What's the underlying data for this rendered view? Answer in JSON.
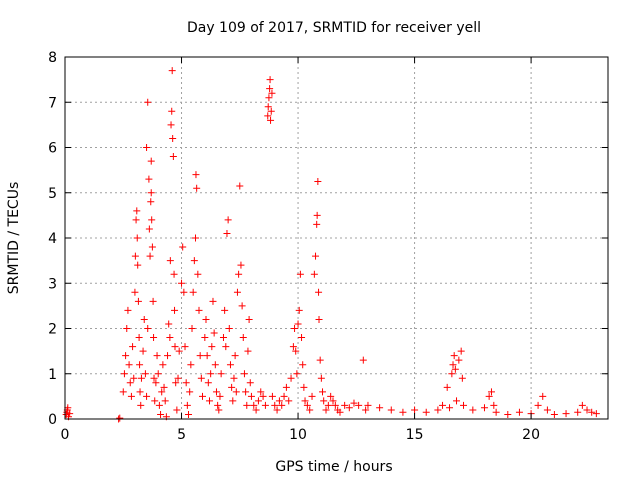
{
  "chart_data": {
    "type": "scatter",
    "title": "Day 109 of 2017, SRMTID for receiver yell",
    "xlabel": "GPS time / hours",
    "ylabel": "SRMTID / TECUs",
    "xlim": [
      0,
      23.3
    ],
    "ylim": [
      0,
      8
    ],
    "x_ticks": [
      0,
      5,
      10,
      15,
      20
    ],
    "y_ticks": [
      0,
      1,
      2,
      3,
      4,
      5,
      6,
      7,
      8
    ],
    "x_tick_labels": [
      "0",
      "5",
      "10",
      "15",
      "20"
    ],
    "y_tick_labels": [
      "0",
      "1",
      "2",
      "3",
      "4",
      "5",
      "6",
      "7",
      "8"
    ],
    "grid": true,
    "marker": "+",
    "series": [
      {
        "name": "SRMTID",
        "color": "#ff0000",
        "points": [
          [
            0.05,
            0.1
          ],
          [
            0.08,
            0.15
          ],
          [
            0.1,
            0.2
          ],
          [
            0.12,
            0.25
          ],
          [
            0.15,
            0.05
          ],
          [
            0.2,
            0.12
          ],
          [
            2.3,
            0.0
          ],
          [
            2.35,
            0.02
          ],
          [
            2.5,
            0.6
          ],
          [
            2.55,
            1.0
          ],
          [
            2.6,
            1.4
          ],
          [
            2.65,
            2.0
          ],
          [
            2.7,
            2.4
          ],
          [
            2.75,
            1.2
          ],
          [
            2.8,
            0.8
          ],
          [
            2.85,
            0.5
          ],
          [
            2.9,
            1.6
          ],
          [
            2.95,
            0.9
          ],
          [
            3.0,
            2.8
          ],
          [
            3.02,
            3.6
          ],
          [
            3.05,
            4.4
          ],
          [
            3.08,
            4.6
          ],
          [
            3.1,
            4.0
          ],
          [
            3.12,
            3.4
          ],
          [
            3.15,
            2.6
          ],
          [
            3.18,
            1.8
          ],
          [
            3.2,
            1.2
          ],
          [
            3.22,
            0.6
          ],
          [
            3.25,
            0.3
          ],
          [
            3.28,
            0.9
          ],
          [
            3.35,
            1.5
          ],
          [
            3.4,
            2.2
          ],
          [
            3.45,
            1.0
          ],
          [
            3.5,
            0.5
          ],
          [
            3.55,
            2.0
          ],
          [
            3.6,
            5.3
          ],
          [
            3.62,
            4.2
          ],
          [
            3.65,
            3.6
          ],
          [
            3.68,
            4.8
          ],
          [
            3.7,
            5.0
          ],
          [
            3.72,
            4.4
          ],
          [
            3.75,
            3.8
          ],
          [
            3.78,
            2.6
          ],
          [
            3.8,
            1.8
          ],
          [
            3.82,
            0.9
          ],
          [
            3.85,
            0.4
          ],
          [
            3.5,
            6.0
          ],
          [
            3.55,
            7.0
          ],
          [
            3.7,
            5.7
          ],
          [
            3.9,
            0.8
          ],
          [
            3.95,
            1.4
          ],
          [
            4.0,
            1.0
          ],
          [
            4.05,
            0.3
          ],
          [
            4.1,
            0.1
          ],
          [
            4.15,
            0.6
          ],
          [
            4.2,
            1.2
          ],
          [
            4.25,
            0.7
          ],
          [
            4.3,
            0.4
          ],
          [
            4.35,
            0.05
          ],
          [
            4.4,
            1.4
          ],
          [
            4.45,
            2.1
          ],
          [
            4.5,
            1.8
          ],
          [
            4.52,
            3.5
          ],
          [
            4.55,
            6.5
          ],
          [
            4.58,
            6.8
          ],
          [
            4.6,
            7.7
          ],
          [
            4.62,
            6.2
          ],
          [
            4.65,
            5.8
          ],
          [
            4.68,
            3.2
          ],
          [
            4.7,
            2.4
          ],
          [
            4.72,
            1.6
          ],
          [
            4.75,
            0.8
          ],
          [
            4.8,
            0.2
          ],
          [
            4.85,
            0.9
          ],
          [
            4.9,
            1.5
          ],
          [
            5.0,
            3.0
          ],
          [
            5.05,
            3.8
          ],
          [
            5.1,
            2.8
          ],
          [
            5.15,
            1.6
          ],
          [
            5.2,
            0.8
          ],
          [
            5.25,
            0.3
          ],
          [
            5.3,
            0.1
          ],
          [
            5.35,
            0.6
          ],
          [
            5.4,
            1.2
          ],
          [
            5.45,
            2.0
          ],
          [
            5.5,
            2.8
          ],
          [
            5.55,
            3.5
          ],
          [
            5.6,
            4.0
          ],
          [
            5.62,
            5.4
          ],
          [
            5.65,
            5.1
          ],
          [
            5.7,
            3.2
          ],
          [
            5.75,
            2.4
          ],
          [
            5.8,
            1.4
          ],
          [
            5.85,
            0.9
          ],
          [
            5.9,
            0.5
          ],
          [
            6.0,
            1.8
          ],
          [
            6.05,
            2.2
          ],
          [
            6.1,
            1.4
          ],
          [
            6.15,
            0.8
          ],
          [
            6.2,
            0.4
          ],
          [
            6.25,
            1.0
          ],
          [
            6.3,
            1.6
          ],
          [
            6.35,
            2.6
          ],
          [
            6.4,
            1.9
          ],
          [
            6.45,
            1.2
          ],
          [
            6.5,
            0.6
          ],
          [
            6.55,
            0.3
          ],
          [
            6.6,
            0.2
          ],
          [
            6.65,
            0.5
          ],
          [
            6.7,
            1.0
          ],
          [
            6.8,
            1.8
          ],
          [
            6.85,
            2.4
          ],
          [
            6.9,
            1.6
          ],
          [
            6.95,
            4.1
          ],
          [
            7.0,
            4.4
          ],
          [
            7.05,
            2.0
          ],
          [
            7.1,
            1.2
          ],
          [
            7.15,
            0.7
          ],
          [
            7.2,
            0.4
          ],
          [
            7.25,
            0.9
          ],
          [
            7.3,
            1.4
          ],
          [
            7.35,
            0.6
          ],
          [
            7.4,
            2.8
          ],
          [
            7.45,
            3.2
          ],
          [
            7.5,
            5.15
          ],
          [
            7.55,
            3.4
          ],
          [
            7.6,
            2.5
          ],
          [
            7.65,
            1.8
          ],
          [
            7.7,
            1.0
          ],
          [
            7.75,
            0.6
          ],
          [
            7.8,
            0.3
          ],
          [
            7.85,
            1.5
          ],
          [
            7.9,
            2.2
          ],
          [
            7.95,
            0.8
          ],
          [
            8.0,
            0.5
          ],
          [
            8.1,
            0.3
          ],
          [
            8.2,
            0.2
          ],
          [
            8.3,
            0.4
          ],
          [
            8.4,
            0.6
          ],
          [
            8.5,
            0.5
          ],
          [
            8.6,
            0.3
          ],
          [
            8.7,
            6.7
          ],
          [
            8.72,
            6.9
          ],
          [
            8.75,
            7.1
          ],
          [
            8.78,
            7.3
          ],
          [
            8.8,
            7.5
          ],
          [
            8.82,
            6.6
          ],
          [
            8.85,
            6.8
          ],
          [
            8.88,
            7.2
          ],
          [
            8.9,
            0.5
          ],
          [
            9.0,
            0.3
          ],
          [
            9.1,
            0.2
          ],
          [
            9.2,
            0.4
          ],
          [
            9.3,
            0.3
          ],
          [
            9.4,
            0.5
          ],
          [
            9.5,
            0.7
          ],
          [
            9.6,
            0.4
          ],
          [
            9.7,
            0.9
          ],
          [
            9.8,
            1.6
          ],
          [
            9.85,
            2.0
          ],
          [
            9.9,
            1.5
          ],
          [
            9.95,
            1.0
          ],
          [
            10.0,
            2.1
          ],
          [
            10.05,
            2.4
          ],
          [
            10.1,
            3.2
          ],
          [
            10.15,
            1.8
          ],
          [
            10.2,
            1.2
          ],
          [
            10.25,
            0.7
          ],
          [
            10.3,
            0.4
          ],
          [
            10.4,
            0.3
          ],
          [
            10.5,
            0.2
          ],
          [
            10.6,
            0.5
          ],
          [
            10.7,
            3.2
          ],
          [
            10.75,
            3.6
          ],
          [
            10.8,
            4.3
          ],
          [
            10.82,
            4.5
          ],
          [
            10.85,
            5.25
          ],
          [
            10.88,
            2.8
          ],
          [
            10.9,
            2.2
          ],
          [
            10.95,
            1.3
          ],
          [
            11.0,
            0.9
          ],
          [
            11.05,
            0.6
          ],
          [
            11.1,
            0.4
          ],
          [
            11.2,
            0.2
          ],
          [
            11.3,
            0.3
          ],
          [
            11.4,
            0.5
          ],
          [
            11.5,
            0.4
          ],
          [
            11.6,
            0.3
          ],
          [
            11.7,
            0.2
          ],
          [
            11.8,
            0.15
          ],
          [
            12.0,
            0.3
          ],
          [
            12.2,
            0.25
          ],
          [
            12.4,
            0.35
          ],
          [
            12.6,
            0.3
          ],
          [
            12.8,
            1.3
          ],
          [
            12.9,
            0.2
          ],
          [
            13.0,
            0.3
          ],
          [
            13.5,
            0.25
          ],
          [
            14.0,
            0.2
          ],
          [
            14.5,
            0.15
          ],
          [
            15.0,
            0.2
          ],
          [
            15.5,
            0.15
          ],
          [
            16.0,
            0.2
          ],
          [
            16.2,
            0.3
          ],
          [
            16.4,
            0.7
          ],
          [
            16.5,
            0.25
          ],
          [
            16.6,
            1.0
          ],
          [
            16.65,
            1.2
          ],
          [
            16.7,
            1.4
          ],
          [
            16.75,
            1.1
          ],
          [
            16.8,
            0.4
          ],
          [
            16.9,
            1.3
          ],
          [
            17.0,
            1.5
          ],
          [
            17.05,
            0.9
          ],
          [
            17.1,
            0.3
          ],
          [
            17.5,
            0.2
          ],
          [
            18.0,
            0.25
          ],
          [
            18.2,
            0.5
          ],
          [
            18.3,
            0.6
          ],
          [
            18.4,
            0.3
          ],
          [
            18.5,
            0.15
          ],
          [
            19.0,
            0.1
          ],
          [
            19.5,
            0.15
          ],
          [
            20.0,
            0.12
          ],
          [
            20.3,
            0.3
          ],
          [
            20.5,
            0.5
          ],
          [
            20.7,
            0.2
          ],
          [
            21.0,
            0.1
          ],
          [
            21.5,
            0.12
          ],
          [
            22.0,
            0.15
          ],
          [
            22.2,
            0.3
          ],
          [
            22.4,
            0.2
          ],
          [
            22.6,
            0.15
          ],
          [
            22.8,
            0.12
          ]
        ]
      }
    ]
  }
}
